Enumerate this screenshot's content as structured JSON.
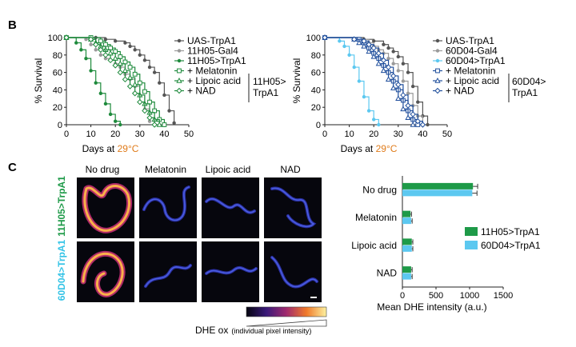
{
  "panels": {
    "b": "B",
    "c": "C"
  },
  "chart_data": [
    {
      "type": "line",
      "panel": "B",
      "xlabel_prefix": "Days at ",
      "xlabel_temp": "29°C",
      "ylabel": "% Survival",
      "xlim": [
        0,
        50
      ],
      "ylim": [
        0,
        100
      ],
      "xticks": [
        0,
        10,
        20,
        30,
        40,
        50
      ],
      "yticks": [
        0,
        20,
        40,
        60,
        80,
        100
      ],
      "series": [
        {
          "name": "UAS-TrpA1",
          "color": "#555555",
          "marker": "circle",
          "x": [
            0,
            12,
            16,
            20,
            24,
            26,
            28,
            30,
            32,
            34,
            36,
            38,
            40,
            42,
            44
          ],
          "y": [
            100,
            100,
            98,
            96,
            94,
            90,
            86,
            80,
            74,
            66,
            60,
            48,
            34,
            16,
            2
          ]
        },
        {
          "name": "11H05-Gal4",
          "color": "#9a9a9a",
          "marker": "circle",
          "x": [
            0,
            8,
            10,
            12,
            14,
            16,
            18,
            20,
            22,
            24,
            26,
            28,
            30,
            32,
            34
          ],
          "y": [
            100,
            98,
            92,
            86,
            80,
            76,
            74,
            70,
            66,
            58,
            52,
            44,
            34,
            18,
            4
          ]
        },
        {
          "name": "11H05>TrpA1",
          "color": "#1e8a3c",
          "marker": "dot",
          "x": [
            0,
            4,
            6,
            8,
            10,
            12,
            14,
            16,
            18,
            20,
            22
          ],
          "y": [
            100,
            94,
            86,
            76,
            62,
            48,
            36,
            24,
            12,
            4,
            0
          ]
        },
        {
          "name": "+ Melatonin",
          "color": "#1e8a3c",
          "marker": "square",
          "x": [
            0,
            10,
            14,
            16,
            18,
            20,
            22,
            24,
            26,
            28,
            30,
            32,
            34,
            36,
            38,
            40
          ],
          "y": [
            100,
            100,
            96,
            92,
            88,
            84,
            78,
            72,
            66,
            58,
            48,
            38,
            26,
            16,
            6,
            0
          ]
        },
        {
          "name": "+ Lipoic acid",
          "color": "#1e8a3c",
          "marker": "triangle",
          "x": [
            0,
            10,
            12,
            14,
            16,
            18,
            20,
            22,
            24,
            26,
            28,
            30,
            32,
            34,
            36,
            38
          ],
          "y": [
            100,
            98,
            94,
            90,
            86,
            82,
            76,
            70,
            62,
            54,
            46,
            34,
            24,
            14,
            6,
            0
          ]
        },
        {
          "name": "+ NAD",
          "color": "#1e8a3c",
          "marker": "diamond",
          "x": [
            0,
            10,
            12,
            14,
            16,
            18,
            20,
            22,
            24,
            26,
            28,
            30,
            32,
            34,
            36
          ],
          "y": [
            100,
            98,
            92,
            86,
            80,
            74,
            68,
            60,
            52,
            44,
            36,
            26,
            16,
            8,
            0
          ]
        }
      ],
      "bracket_label": [
        "11H05>",
        "TrpA1"
      ]
    },
    {
      "type": "line",
      "panel": "B",
      "xlabel_prefix": "Days at ",
      "xlabel_temp": "29°C",
      "ylabel": "% Survival",
      "xlim": [
        0,
        50
      ],
      "ylim": [
        0,
        100
      ],
      "xticks": [
        0,
        10,
        20,
        30,
        40,
        50
      ],
      "yticks": [
        0,
        20,
        40,
        60,
        80,
        100
      ],
      "series": [
        {
          "name": "UAS-TrpA1",
          "color": "#555555",
          "marker": "circle",
          "x": [
            0,
            16,
            20,
            24,
            26,
            28,
            30,
            32,
            34,
            36,
            38,
            40,
            42
          ],
          "y": [
            100,
            98,
            96,
            92,
            88,
            84,
            78,
            70,
            60,
            44,
            26,
            10,
            0
          ]
        },
        {
          "name": "60D04-Gal4",
          "color": "#9a9a9a",
          "marker": "circle",
          "x": [
            0,
            14,
            18,
            20,
            22,
            24,
            26,
            28,
            30,
            32,
            34,
            36,
            38,
            40
          ],
          "y": [
            100,
            98,
            94,
            90,
            86,
            82,
            76,
            70,
            62,
            50,
            36,
            22,
            10,
            0
          ]
        },
        {
          "name": "60D04>TrpA1",
          "color": "#5cc8f0",
          "marker": "dot",
          "x": [
            0,
            6,
            8,
            10,
            12,
            14,
            16,
            18,
            20,
            22
          ],
          "y": [
            100,
            96,
            90,
            80,
            66,
            50,
            32,
            16,
            6,
            0
          ]
        },
        {
          "name": "+ Melatonin",
          "color": "#1f4e9c",
          "marker": "square",
          "x": [
            0,
            14,
            16,
            18,
            20,
            22,
            24,
            26,
            28,
            30,
            32,
            34,
            36,
            38
          ],
          "y": [
            100,
            98,
            94,
            88,
            82,
            76,
            68,
            60,
            50,
            40,
            28,
            16,
            6,
            0
          ]
        },
        {
          "name": "+ Lipoic acid",
          "color": "#1f4e9c",
          "marker": "triangle",
          "x": [
            0,
            12,
            14,
            16,
            18,
            20,
            22,
            24,
            26,
            28,
            30,
            32,
            34,
            36
          ],
          "y": [
            100,
            98,
            94,
            90,
            84,
            78,
            70,
            62,
            52,
            42,
            30,
            18,
            8,
            0
          ]
        },
        {
          "name": "+ NAD",
          "color": "#1f4e9c",
          "marker": "diamond",
          "x": [
            0,
            12,
            16,
            18,
            20,
            22,
            24,
            26,
            28,
            30,
            32,
            34,
            36,
            38,
            40
          ],
          "y": [
            100,
            98,
            96,
            92,
            88,
            82,
            74,
            66,
            56,
            46,
            34,
            22,
            12,
            4,
            0
          ]
        }
      ],
      "bracket_label": [
        "60D04>",
        "TrpA1"
      ]
    },
    {
      "type": "bar",
      "panel": "C",
      "orientation": "horizontal",
      "categories": [
        "No drug",
        "Melatonin",
        "Lipoic acid",
        "NAD"
      ],
      "xlabel": "Mean DHE intensity (a.u.)",
      "xlim": [
        0,
        1500
      ],
      "xticks": [
        0,
        500,
        1000,
        1500
      ],
      "series": [
        {
          "name": "11H05>TrpA1",
          "color": "#1e9a48",
          "values": [
            1050,
            120,
            140,
            130
          ],
          "errors": [
            70,
            15,
            15,
            15
          ]
        },
        {
          "name": "60D04>TrpA1",
          "color": "#5cc8f0",
          "values": [
            1040,
            130,
            140,
            130
          ],
          "errors": [
            70,
            15,
            15,
            15
          ]
        }
      ]
    }
  ],
  "micrographs": {
    "columns": [
      "No drug",
      "Melatonin",
      "Lipoic acid",
      "NAD"
    ],
    "rows": [
      {
        "label": "11H05>TrpA1",
        "color": "#1e9a48"
      },
      {
        "label": "60D04>TrpA1",
        "color": "#33c3e6"
      }
    ],
    "scale_label": "DHE ox",
    "scale_note": "(individual pixel intensity)"
  }
}
